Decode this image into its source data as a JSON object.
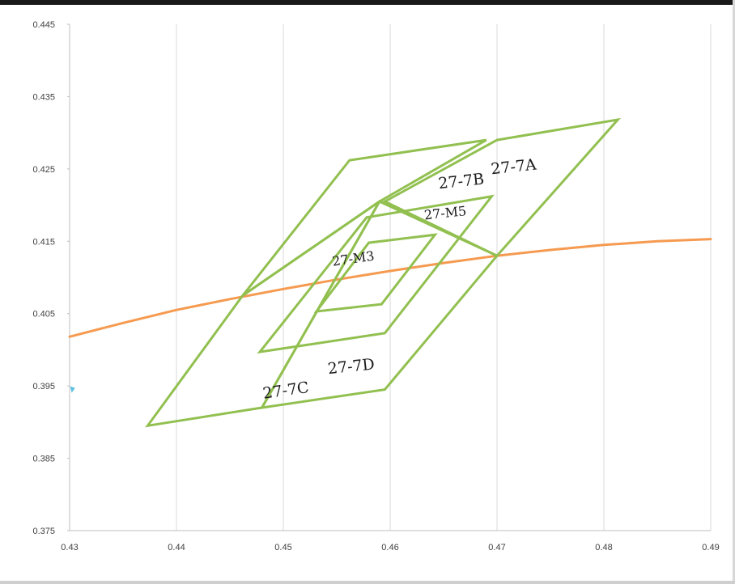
{
  "chart_data": {
    "type": "scatter",
    "title": "",
    "xlabel": "",
    "ylabel": "",
    "xlim": [
      0.43,
      0.49
    ],
    "ylim": [
      0.375,
      0.445
    ],
    "x_ticks": [
      "0.43",
      "0.44",
      "0.45",
      "0.46",
      "0.47",
      "0.48",
      "0.49"
    ],
    "y_ticks": [
      "0.445",
      "0.435",
      "0.425",
      "0.415",
      "0.405",
      "0.395",
      "0.385",
      "0.375"
    ],
    "grid": "vertical",
    "colors": {
      "region_outline": "#92c050",
      "curve": "#f59a50",
      "marker": "#5bc0de",
      "grid": "#d9d9d9"
    },
    "series": [
      {
        "x": [
          0.43,
          0.435,
          0.44,
          0.445,
          0.45,
          0.455,
          0.46,
          0.465,
          0.47,
          0.475,
          0.48,
          0.485,
          0.49
        ],
        "y": [
          0.4018,
          0.4037,
          0.4055,
          0.407,
          0.4084,
          0.4097,
          0.4109,
          0.412,
          0.413,
          0.4138,
          0.4145,
          0.415,
          0.4153
        ]
      }
    ],
    "points": [
      {
        "x": 0.4302,
        "y": 0.3945
      }
    ],
    "regions": [
      {
        "label": "27-7A",
        "outline": [
          [
            0.4595,
            0.4205
          ],
          [
            0.47,
            0.429
          ],
          [
            0.4813,
            0.4318
          ],
          [
            0.47,
            0.413
          ]
        ]
      },
      {
        "label": "27-7B",
        "outline": [
          [
            0.4462,
            0.4075
          ],
          [
            0.4562,
            0.4262
          ],
          [
            0.469,
            0.429
          ],
          [
            0.459,
            0.4205
          ]
        ]
      },
      {
        "label": "27-7C",
        "outline": [
          [
            0.4373,
            0.3895
          ],
          [
            0.448,
            0.392
          ],
          [
            0.459,
            0.4205
          ],
          [
            0.4462,
            0.4075
          ]
        ]
      },
      {
        "label": "27-7D",
        "outline": [
          [
            0.448,
            0.392
          ],
          [
            0.4595,
            0.3945
          ],
          [
            0.47,
            0.413
          ],
          [
            0.459,
            0.4205
          ]
        ]
      },
      {
        "label": "27-M5",
        "outline": [
          [
            0.4478,
            0.3997
          ],
          [
            0.4578,
            0.4183
          ],
          [
            0.4695,
            0.4212
          ],
          [
            0.4595,
            0.4023
          ]
        ]
      },
      {
        "label": "27-M3",
        "outline": [
          [
            0.4531,
            0.4053
          ],
          [
            0.458,
            0.4148
          ],
          [
            0.4642,
            0.4159
          ],
          [
            0.4592,
            0.4063
          ]
        ]
      }
    ],
    "region_labels": [
      {
        "text": "27-7A",
        "x": 0.4716,
        "y": 0.4246
      },
      {
        "text": "27-7B",
        "x": 0.4667,
        "y": 0.4226
      },
      {
        "text": "27-7C",
        "x": 0.4503,
        "y": 0.3937
      },
      {
        "text": "27-7D",
        "x": 0.4564,
        "y": 0.397
      },
      {
        "text": "27-M5",
        "x": 0.4652,
        "y": 0.4183
      },
      {
        "text": "27-M3",
        "x": 0.4566,
        "y": 0.412
      }
    ]
  }
}
